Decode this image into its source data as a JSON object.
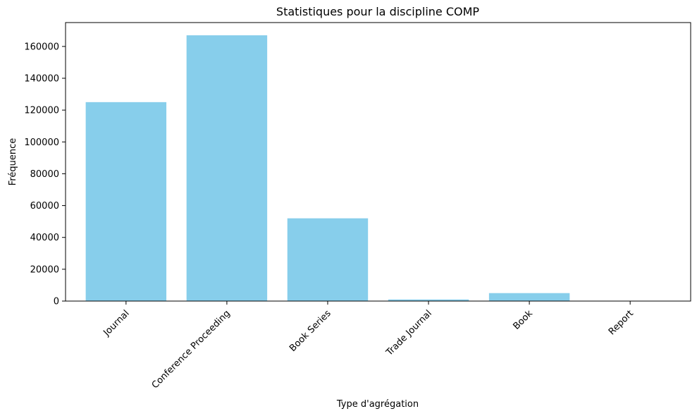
{
  "chart_data": {
    "type": "bar",
    "title": "Statistiques pour la discipline COMP",
    "xlabel": "Type d'agrégation",
    "ylabel": "Fréquence",
    "categories": [
      "Journal",
      "Conference Proceeding",
      "Book Series",
      "Trade Journal",
      "Book",
      "Report"
    ],
    "values": [
      125000,
      167000,
      52000,
      1000,
      5000,
      100
    ],
    "ylim": [
      0,
      175000
    ],
    "yticks": [
      "0",
      "20000",
      "40000",
      "60000",
      "80000",
      "100000",
      "120000",
      "140000",
      "160000"
    ],
    "bar_color": "#87ceeb",
    "grid": false,
    "legend": "none",
    "xtick_rotation": 45
  }
}
